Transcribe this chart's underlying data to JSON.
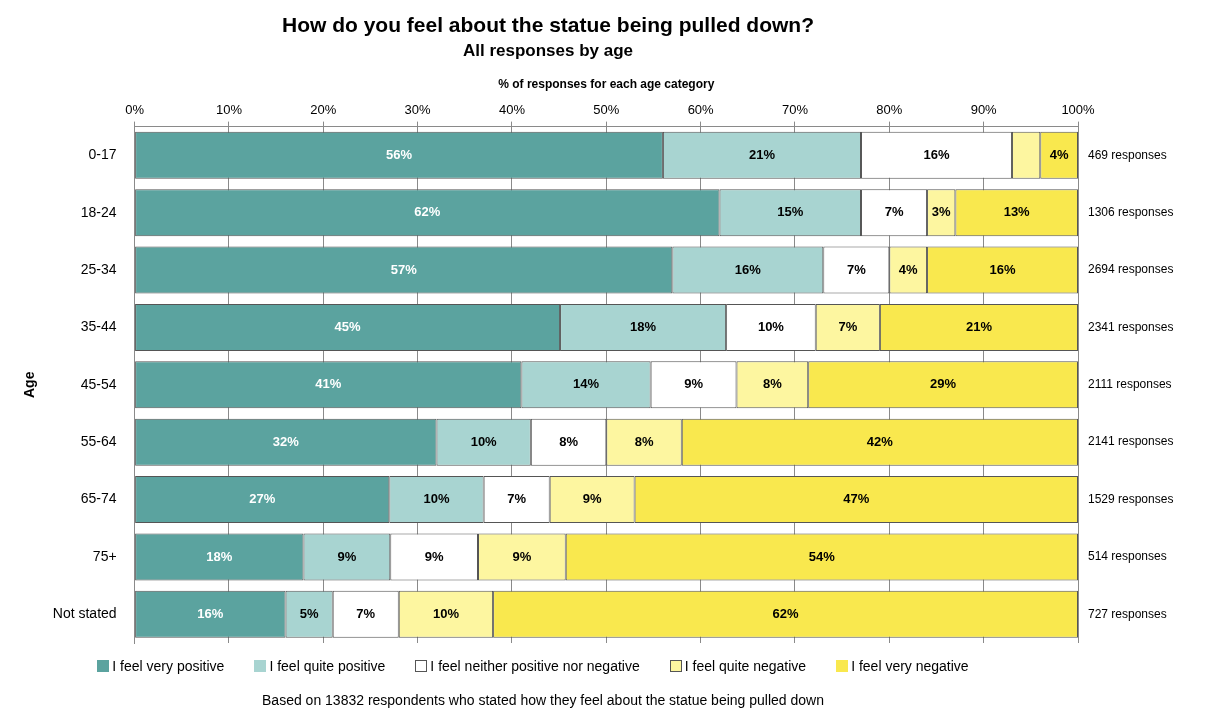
{
  "chart_data": {
    "type": "bar",
    "orientation": "horizontal",
    "stacked": true,
    "title": "How do you feel about the statue being pulled down?",
    "subtitle": "All responses by age",
    "xlabel": "% of responses for each age category",
    "ylabel": "Age",
    "categories": [
      "0-17",
      "18-24",
      "25-34",
      "35-44",
      "45-54",
      "55-64",
      "65-74",
      "75+",
      "Not stated"
    ],
    "series": [
      {
        "name": "I feel very positive",
        "color": "#5ba39f",
        "values": [
          56,
          62,
          57,
          45.1,
          41,
          32,
          27,
          17.9,
          16
        ],
        "value_labels": [
          "56%",
          "62%",
          "57%",
          "45%",
          "41%",
          "32%",
          "27%",
          "18%",
          "16%"
        ]
      },
      {
        "name": "I feel quite positive",
        "color": "#a8d4d1",
        "values": [
          21,
          15,
          16,
          17.6,
          13.7,
          10,
          10,
          9.2,
          5
        ],
        "value_labels": [
          "21%",
          "15%",
          "16%",
          "18%",
          "14%",
          "10%",
          "10%",
          "9%",
          "5%"
        ]
      },
      {
        "name": "I feel neither positive nor negative",
        "color": "#ffffff",
        "values": [
          16,
          7,
          7,
          9.5,
          9.1,
          8,
          7,
          9.3,
          7
        ],
        "value_labels": [
          "16%",
          "7%",
          "7%",
          "10%",
          "9%",
          "8%",
          "7%",
          "9%",
          "7%"
        ]
      },
      {
        "name": "I feel quite negative",
        "color": "#fdf6a0",
        "values": [
          3,
          3,
          4,
          6.8,
          7.6,
          8,
          9,
          9.3,
          10
        ],
        "value_labels": [
          null,
          "3%",
          "4%",
          "7%",
          "8%",
          "8%",
          "9%",
          "9%",
          "10%"
        ]
      },
      {
        "name": "I feel very negative",
        "color": "#f9e84e",
        "values": [
          4,
          13,
          16,
          21,
          28.6,
          42,
          47,
          54.3,
          62
        ],
        "value_labels": [
          "4%",
          "13%",
          "16%",
          "21%",
          "29%",
          "42%",
          "47%",
          "54%",
          "62%"
        ]
      }
    ],
    "xlim": [
      0,
      100
    ],
    "xticks": [
      {
        "value": 0,
        "label": "0%"
      },
      {
        "value": 10,
        "label": "10%"
      },
      {
        "value": 20,
        "label": "20%"
      },
      {
        "value": 30,
        "label": "30%"
      },
      {
        "value": 40,
        "label": "40%"
      },
      {
        "value": 50,
        "label": "50%"
      },
      {
        "value": 60,
        "label": "60%"
      },
      {
        "value": 70,
        "label": "70%"
      },
      {
        "value": 80,
        "label": "80%"
      },
      {
        "value": 90,
        "label": "90%"
      },
      {
        "value": 100,
        "label": "100%"
      }
    ],
    "grid": "x",
    "legend": "bottom",
    "annotations": [
      "469 responses",
      "1306 responses",
      "2694 responses",
      "2341 responses",
      "2111 responses",
      "2141 responses",
      "1529 responses",
      "514 responses",
      "727 responses",
      "Based on 13832 respondents who stated how they feel about the statue being pulled down"
    ]
  }
}
